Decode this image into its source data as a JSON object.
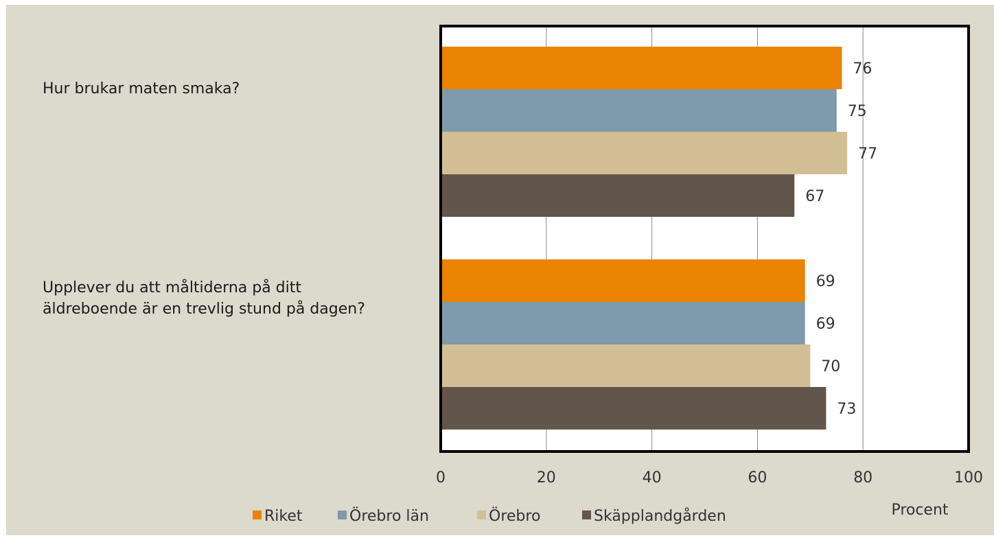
{
  "chart_data": {
    "type": "bar",
    "orientation": "horizontal",
    "categories": [
      "Hur brukar maten smaka?",
      "Upplever du att måltiderna på ditt äldreboende är en trevlig stund på dagen?"
    ],
    "series": [
      {
        "name": "Riket",
        "color": "#e98300",
        "values": [
          76,
          69
        ]
      },
      {
        "name": "Örebro län",
        "color": "#7e9aab",
        "values": [
          75,
          69
        ]
      },
      {
        "name": "Örebro",
        "color": "#d3bf96",
        "values": [
          77,
          70
        ]
      },
      {
        "name": "Skäpplandgården",
        "color": "#62554b",
        "values": [
          67,
          73
        ]
      }
    ],
    "xlabel": "Procent",
    "xlim": [
      0,
      100
    ],
    "xticks": [
      "0",
      "20",
      "40",
      "60",
      "80",
      "100"
    ],
    "grid": "vertical",
    "legend": "bottom",
    "data_labels": true
  }
}
